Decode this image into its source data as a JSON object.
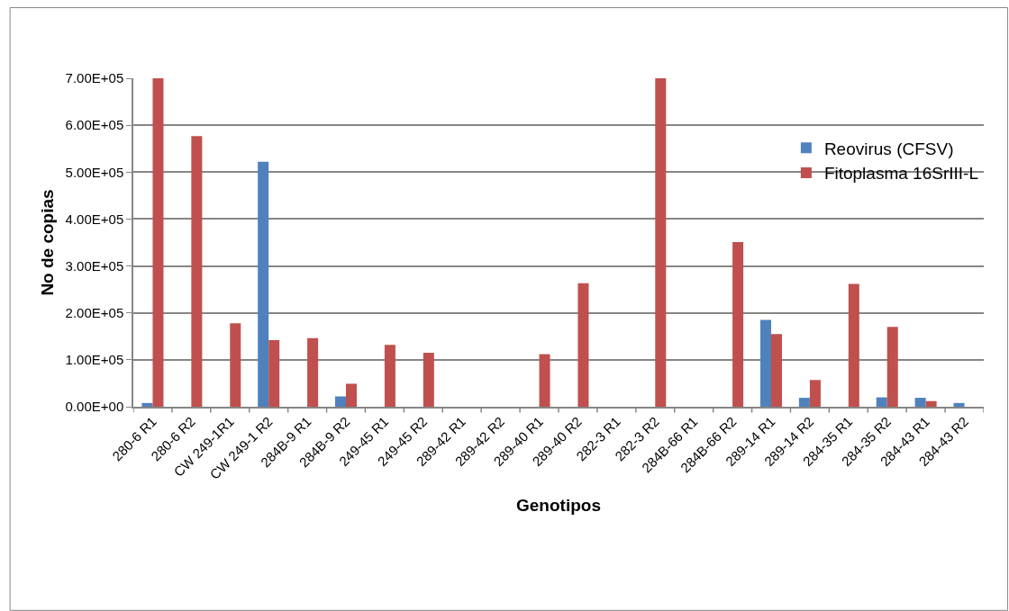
{
  "chart_data": {
    "type": "bar",
    "xlabel": "Genotipos",
    "ylabel": "No de copias",
    "categories": [
      "280-6 R1",
      "280-6 R2",
      "CW 249-1R1",
      "CW 249-1 R2",
      "284B-9 R1",
      "284B-9 R2",
      "249-45 R1",
      "249-45 R2",
      "289-42 R1",
      "289-42 R2",
      "289-40 R1",
      "289-40 R2",
      "282-3 R1",
      "282-3 R2",
      "284B-66 R1",
      "284B-66 R2",
      "289-14 R1",
      "289-14 R2",
      "284-35 R1",
      "284-35 R2",
      "284-43 R1",
      "284-43 R2"
    ],
    "series": [
      {
        "name": "Reovirus (CFSV)",
        "color": "#4f81bd",
        "values": [
          8000,
          null,
          null,
          522000,
          null,
          22000,
          null,
          null,
          null,
          null,
          null,
          null,
          null,
          null,
          null,
          null,
          185000,
          19000,
          null,
          20000,
          19000,
          8000
        ]
      },
      {
        "name": "Fitoplasma 16SrIII-L",
        "color": "#c0504d",
        "values": [
          700000,
          577000,
          178000,
          142000,
          146000,
          49000,
          132000,
          115000,
          null,
          null,
          112000,
          263000,
          null,
          700000,
          null,
          351000,
          155000,
          57000,
          262000,
          170000,
          12000,
          null
        ]
      }
    ],
    "ylim": [
      0,
      700000
    ],
    "yticks": [
      {
        "value": 0,
        "label": "0.00E+00"
      },
      {
        "value": 100000,
        "label": "1.00E+05"
      },
      {
        "value": 200000,
        "label": "2.00E+05"
      },
      {
        "value": 300000,
        "label": "3.00E+05"
      },
      {
        "value": 400000,
        "label": "4.00E+05"
      },
      {
        "value": 500000,
        "label": "5.00E+05"
      },
      {
        "value": 600000,
        "label": "6.00E+05"
      },
      {
        "value": 700000,
        "label": "7.00E+05"
      }
    ],
    "grid": "y",
    "legend": "top right"
  }
}
